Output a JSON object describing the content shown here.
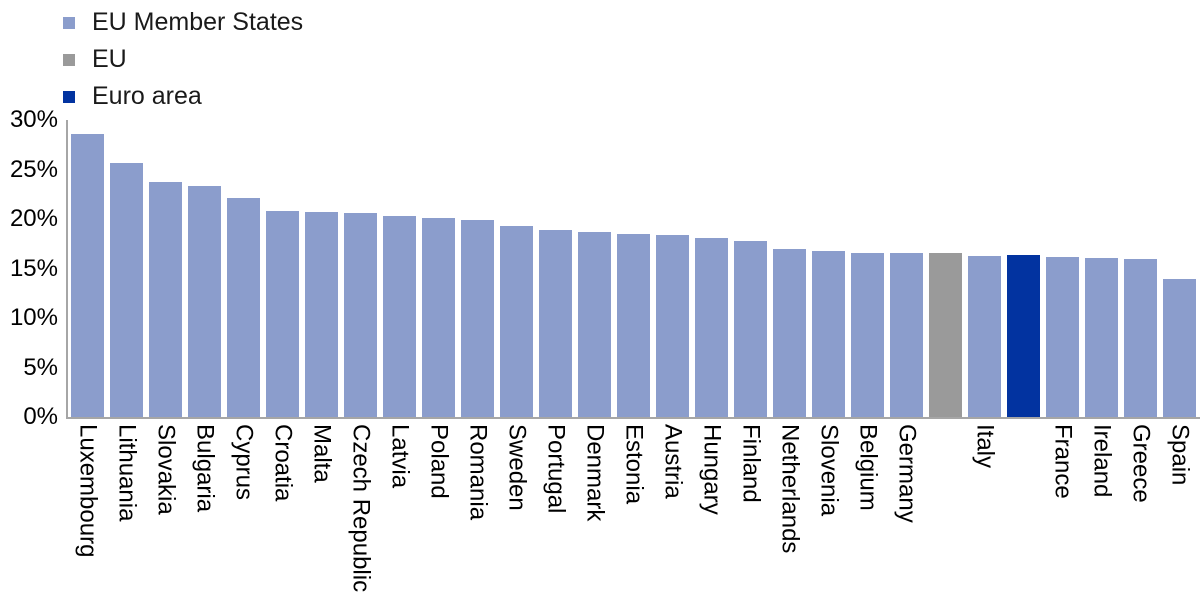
{
  "legend": {
    "items": [
      {
        "label": "EU Member States",
        "color": "#8B9DCC"
      },
      {
        "label": "EU",
        "color": "#9A9A9A"
      },
      {
        "label": "Euro area",
        "color": "#0233A0"
      }
    ]
  },
  "chart_data": {
    "type": "bar",
    "title": "",
    "xlabel": "",
    "ylabel": "",
    "ylim": [
      0,
      30
    ],
    "grid": false,
    "legend_position": "top-left",
    "yticks": {
      "values": [
        0,
        5,
        10,
        15,
        20,
        25,
        30
      ],
      "labels": [
        "0%",
        "5%",
        "10%",
        "15%",
        "20%",
        "25%",
        "30%"
      ]
    },
    "series_colors": {
      "EU Member States": "#8B9DCC",
      "EU": "#9A9A9A",
      "Euro area": "#0233A0"
    },
    "items": [
      {
        "label": "Luxembourg",
        "series": "EU Member States",
        "value": 28.6
      },
      {
        "label": "Lithuania",
        "series": "EU Member States",
        "value": 25.7
      },
      {
        "label": "Slovakia",
        "series": "EU Member States",
        "value": 23.7
      },
      {
        "label": "Bulgaria",
        "series": "EU Member States",
        "value": 23.3
      },
      {
        "label": "Cyprus",
        "series": "EU Member States",
        "value": 22.1
      },
      {
        "label": "Croatia",
        "series": "EU Member States",
        "value": 20.8
      },
      {
        "label": "Malta",
        "series": "EU Member States",
        "value": 20.7
      },
      {
        "label": "Czech Republic",
        "series": "EU Member States",
        "value": 20.6
      },
      {
        "label": "Latvia",
        "series": "EU Member States",
        "value": 20.3
      },
      {
        "label": "Poland",
        "series": "EU Member States",
        "value": 20.1
      },
      {
        "label": "Romania",
        "series": "EU Member States",
        "value": 19.9
      },
      {
        "label": "Sweden",
        "series": "EU Member States",
        "value": 19.3
      },
      {
        "label": "Portugal",
        "series": "EU Member States",
        "value": 18.9
      },
      {
        "label": "Denmark",
        "series": "EU Member States",
        "value": 18.7
      },
      {
        "label": "Estonia",
        "series": "EU Member States",
        "value": 18.5
      },
      {
        "label": "Austria",
        "series": "EU Member States",
        "value": 18.4
      },
      {
        "label": "Hungary",
        "series": "EU Member States",
        "value": 18.1
      },
      {
        "label": "Finland",
        "series": "EU Member States",
        "value": 17.8
      },
      {
        "label": "Netherlands",
        "series": "EU Member States",
        "value": 17.0
      },
      {
        "label": "Slovenia",
        "series": "EU Member States",
        "value": 16.8
      },
      {
        "label": "Belgium",
        "series": "EU Member States",
        "value": 16.6
      },
      {
        "label": "Germany",
        "series": "EU Member States",
        "value": 16.6
      },
      {
        "label": "",
        "series": "EU",
        "value": 16.6
      },
      {
        "label": "Italy",
        "series": "EU Member States",
        "value": 16.3
      },
      {
        "label": "",
        "series": "Euro area",
        "value": 16.4
      },
      {
        "label": "France",
        "series": "EU Member States",
        "value": 16.2
      },
      {
        "label": "Ireland",
        "series": "EU Member States",
        "value": 16.1
      },
      {
        "label": "Greece",
        "series": "EU Member States",
        "value": 16.0
      },
      {
        "label": "Spain",
        "series": "EU Member States",
        "value": 13.9
      }
    ]
  },
  "colors": {
    "axis": "#A6A6A6",
    "text": "#000000",
    "background": "#FFFFFF"
  }
}
